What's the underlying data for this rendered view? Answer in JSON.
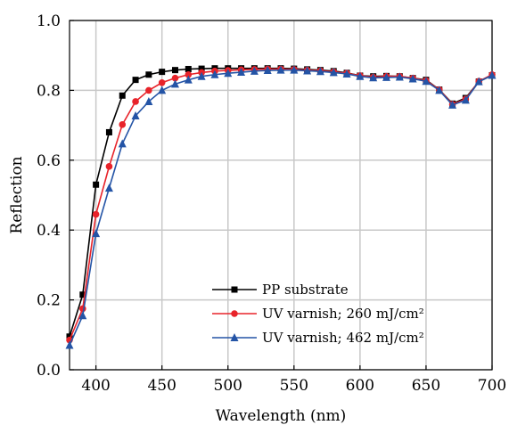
{
  "chart_data": {
    "type": "line",
    "xlabel": "Wavelength (nm)",
    "ylabel": "Reflection",
    "xlim": [
      380,
      700
    ],
    "ylim": [
      0.0,
      1.0
    ],
    "xticks": [
      400,
      450,
      500,
      550,
      600,
      650,
      700
    ],
    "yticks": [
      0.0,
      0.2,
      0.4,
      0.6,
      0.8,
      1.0
    ],
    "xtick_labels": [
      "400",
      "450",
      "500",
      "550",
      "600",
      "650",
      "700"
    ],
    "ytick_labels": [
      "0.0",
      "0.2",
      "0.4",
      "0.6",
      "0.8",
      "1.0"
    ],
    "grid": true,
    "legend_position": "bottom-center",
    "x": [
      380,
      390,
      400,
      410,
      420,
      430,
      440,
      450,
      460,
      470,
      480,
      490,
      500,
      510,
      520,
      530,
      540,
      550,
      560,
      570,
      580,
      590,
      600,
      610,
      620,
      630,
      640,
      650,
      660,
      670,
      680,
      690,
      700
    ],
    "series": [
      {
        "name": "PP substrate",
        "color": "#000000",
        "marker": "square",
        "values": [
          0.095,
          0.215,
          0.53,
          0.68,
          0.785,
          0.83,
          0.845,
          0.853,
          0.858,
          0.861,
          0.862,
          0.863,
          0.863,
          0.863,
          0.863,
          0.863,
          0.863,
          0.862,
          0.86,
          0.858,
          0.855,
          0.85,
          0.842,
          0.84,
          0.841,
          0.84,
          0.835,
          0.83,
          0.802,
          0.762,
          0.778,
          0.825,
          0.843
        ]
      },
      {
        "name": "UV varnish; 260 mJ/cm²",
        "color": "#e8232a",
        "marker": "circle",
        "values": [
          0.085,
          0.175,
          0.445,
          0.582,
          0.702,
          0.768,
          0.8,
          0.822,
          0.835,
          0.845,
          0.851,
          0.855,
          0.857,
          0.859,
          0.86,
          0.861,
          0.861,
          0.86,
          0.858,
          0.856,
          0.853,
          0.849,
          0.842,
          0.838,
          0.84,
          0.84,
          0.835,
          0.828,
          0.802,
          0.76,
          0.775,
          0.826,
          0.845
        ]
      },
      {
        "name": "UV varnish; 462 mJ/cm²",
        "color": "#2454a6",
        "marker": "triangle",
        "values": [
          0.07,
          0.155,
          0.39,
          0.52,
          0.647,
          0.727,
          0.768,
          0.8,
          0.818,
          0.83,
          0.84,
          0.845,
          0.849,
          0.852,
          0.855,
          0.857,
          0.858,
          0.858,
          0.856,
          0.854,
          0.851,
          0.847,
          0.84,
          0.836,
          0.837,
          0.838,
          0.833,
          0.826,
          0.8,
          0.758,
          0.772,
          0.825,
          0.843
        ]
      }
    ]
  }
}
